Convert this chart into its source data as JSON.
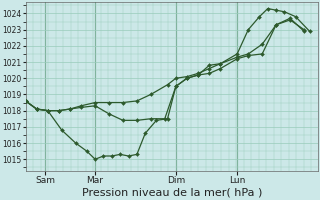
{
  "bg_color": "#cce8e8",
  "grid_color": "#99ccbb",
  "line_color": "#2d5a2d",
  "marker_color": "#2d5a2d",
  "xlabel": "Pression niveau de la mer( hPa )",
  "xlabel_fontsize": 8,
  "yticks": [
    1015,
    1016,
    1017,
    1018,
    1019,
    1020,
    1021,
    1022,
    1023,
    1024
  ],
  "ylim": [
    1014.3,
    1024.7
  ],
  "xlim": [
    0.0,
    1.05
  ],
  "day_labels": [
    "Sam",
    "Mar",
    "Dim",
    "Lun"
  ],
  "day_positions": [
    0.07,
    0.25,
    0.54,
    0.76
  ],
  "vline_positions": [
    0.07,
    0.25,
    0.54,
    0.76
  ],
  "series1_x": [
    0.0,
    0.04,
    0.08,
    0.12,
    0.16,
    0.2,
    0.25,
    0.3,
    0.35,
    0.4,
    0.45,
    0.5,
    0.54,
    0.58,
    0.62,
    0.66,
    0.7,
    0.76,
    0.8,
    0.85,
    0.9,
    0.95,
    1.0
  ],
  "series1_y": [
    1018.6,
    1018.1,
    1018.0,
    1018.0,
    1018.1,
    1018.2,
    1018.3,
    1017.8,
    1017.4,
    1017.4,
    1017.5,
    1017.5,
    1019.5,
    1020.0,
    1020.2,
    1020.3,
    1020.6,
    1021.2,
    1021.4,
    1021.5,
    1023.3,
    1023.7,
    1022.9
  ],
  "series2_x": [
    0.0,
    0.04,
    0.08,
    0.13,
    0.18,
    0.22,
    0.25,
    0.28,
    0.31,
    0.34,
    0.37,
    0.4,
    0.43,
    0.47,
    0.51,
    0.54,
    0.58,
    0.62,
    0.66,
    0.7,
    0.76,
    0.8,
    0.84,
    0.87,
    0.9,
    0.93,
    0.97,
    1.02
  ],
  "series2_y": [
    1018.6,
    1018.1,
    1018.0,
    1016.8,
    1016.0,
    1015.5,
    1015.0,
    1015.2,
    1015.2,
    1015.3,
    1015.2,
    1015.3,
    1016.6,
    1017.4,
    1017.5,
    1019.5,
    1020.0,
    1020.2,
    1020.8,
    1020.9,
    1021.5,
    1023.0,
    1023.8,
    1024.3,
    1024.2,
    1024.1,
    1023.8,
    1022.9
  ],
  "series3_x": [
    0.0,
    0.04,
    0.08,
    0.12,
    0.16,
    0.2,
    0.25,
    0.3,
    0.35,
    0.4,
    0.45,
    0.51,
    0.54,
    0.58,
    0.62,
    0.66,
    0.7,
    0.76,
    0.8,
    0.85,
    0.9,
    0.95,
    1.0
  ],
  "series3_y": [
    1018.6,
    1018.1,
    1018.0,
    1018.0,
    1018.1,
    1018.3,
    1018.5,
    1018.5,
    1018.5,
    1018.6,
    1019.0,
    1019.6,
    1020.0,
    1020.1,
    1020.3,
    1020.6,
    1020.9,
    1021.3,
    1021.5,
    1022.1,
    1023.3,
    1023.6,
    1023.0
  ]
}
